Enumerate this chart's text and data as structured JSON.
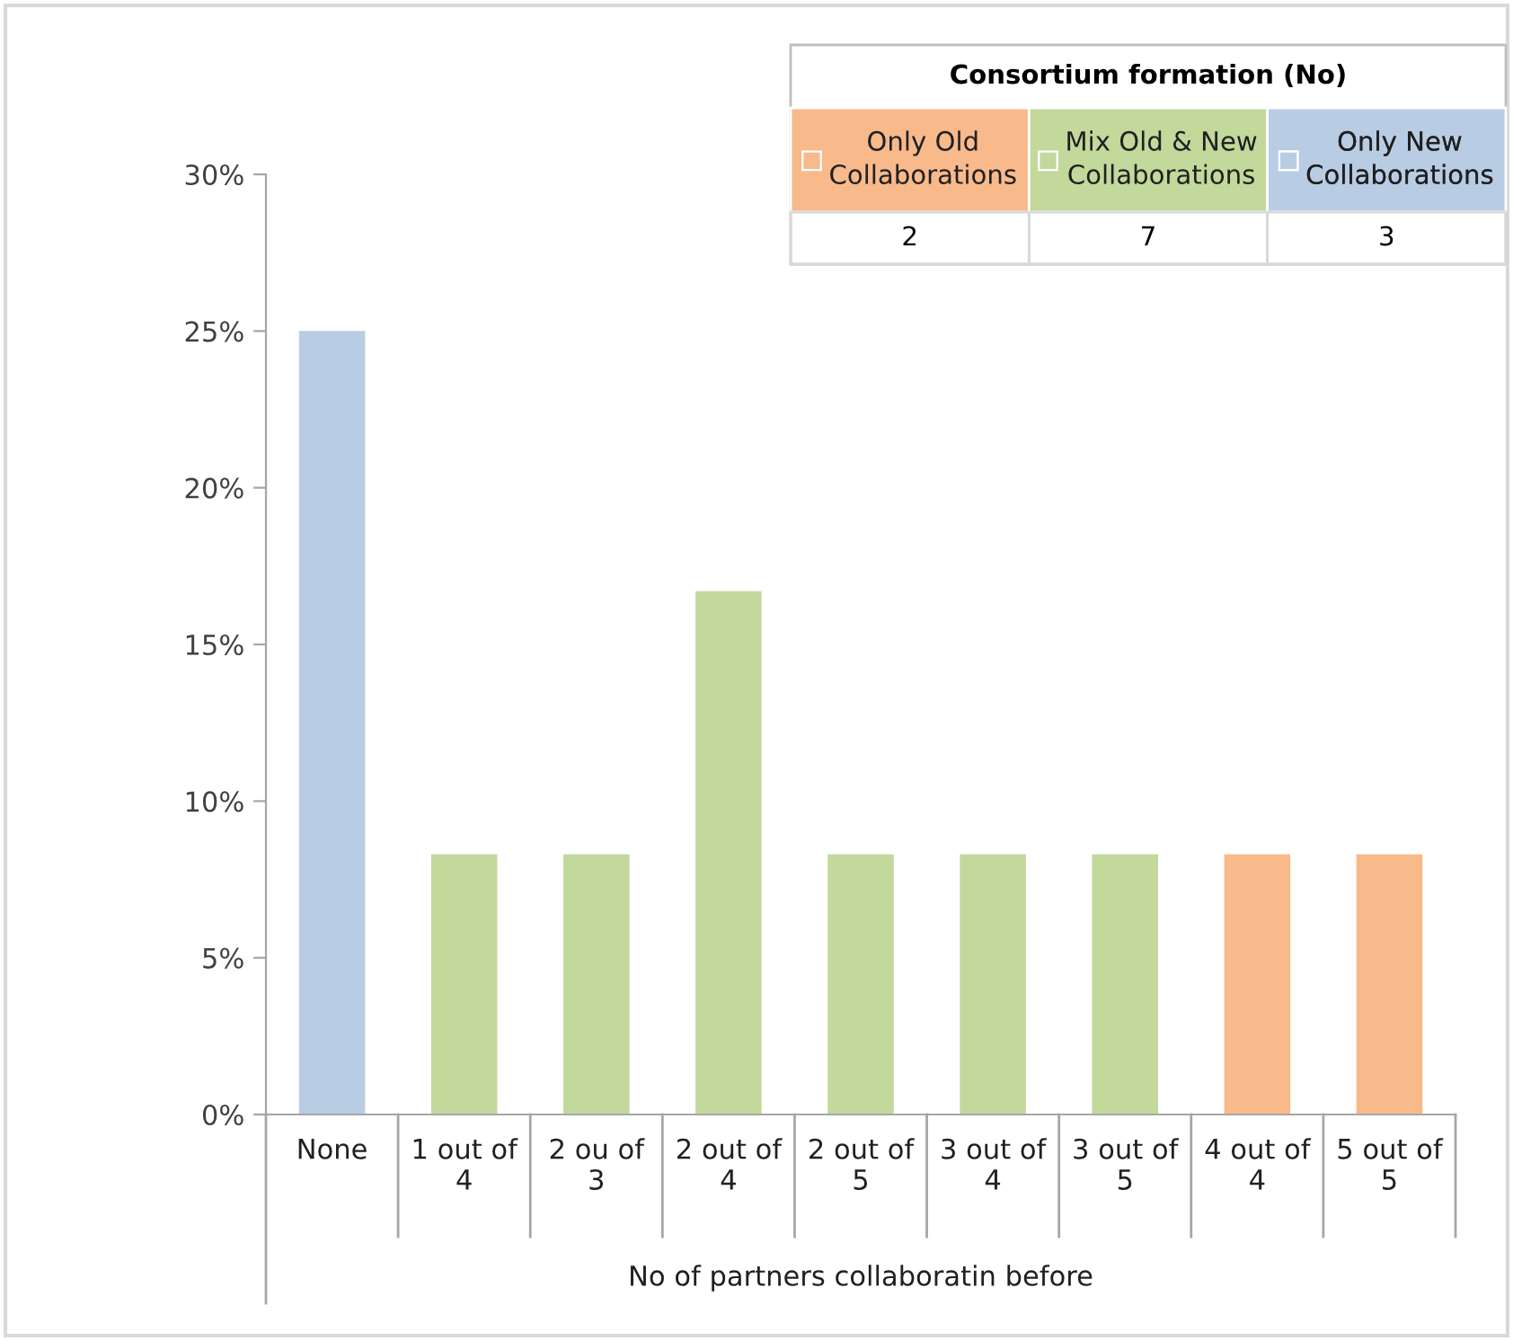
{
  "chart_data": {
    "type": "bar",
    "categories": [
      "None",
      "1 out of\n4",
      "2 ou of\n3",
      "2 out of\n4",
      "2 out of\n5",
      "3 out of\n4",
      "3 out of\n5",
      "4 out of\n4",
      "5 out of\n5"
    ],
    "series": [
      {
        "name": "Only Old\nCollaborations",
        "color": "#f8b98b",
        "values": [
          null,
          null,
          null,
          null,
          null,
          null,
          null,
          8.3,
          8.3
        ]
      },
      {
        "name": "Mix Old & New\nCollaborations",
        "color": "#c3d89b",
        "values": [
          null,
          8.3,
          8.3,
          16.7,
          8.3,
          8.3,
          8.3,
          null,
          null
        ]
      },
      {
        "name": "Only New\nCollaborations",
        "color": "#b8cce4",
        "values": [
          25,
          null,
          null,
          null,
          null,
          null,
          null,
          null,
          null
        ]
      }
    ],
    "legend_title": "Consortium formation (No)",
    "annotations": [
      "2",
      "7",
      "3"
    ],
    "legend": "top right",
    "xlabel": "No of partners collaboratin before",
    "ylim": [
      0,
      30
    ],
    "yticks": [
      {
        "value": 0,
        "label": "0%"
      },
      {
        "value": 5,
        "label": "5%"
      },
      {
        "value": 10,
        "label": "10%"
      },
      {
        "value": 15,
        "label": "15%"
      },
      {
        "value": 20,
        "label": "20%"
      },
      {
        "value": 25,
        "label": "25%"
      },
      {
        "value": 30,
        "label": "30%"
      }
    ],
    "grid": false
  }
}
